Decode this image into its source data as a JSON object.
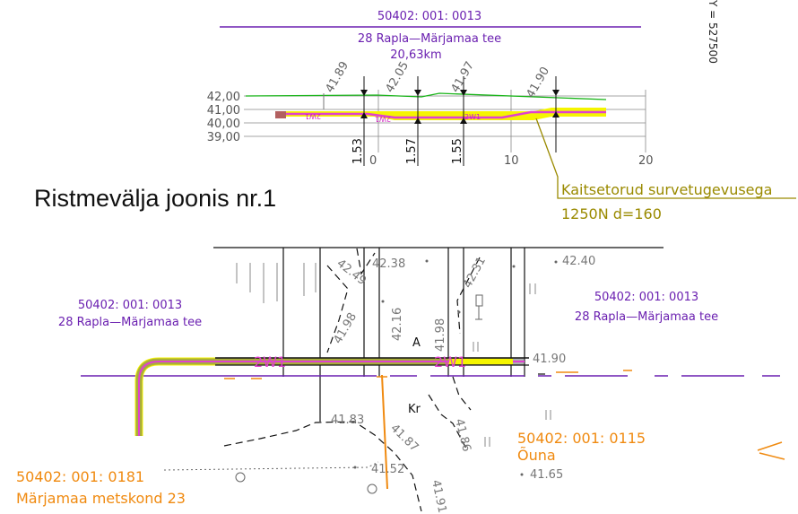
{
  "section_title": {
    "code": "50402: 001: 0013",
    "road": "28 Rapla—Märjamaa tee",
    "km": "20,63km"
  },
  "coordinate_label": "Y = 527500",
  "profile": {
    "y_ticks": [
      "42,00",
      "41,00",
      "40,00",
      "39,00"
    ],
    "x_ticks": [
      "0",
      "10",
      "20"
    ],
    "elevations": [
      "41.89",
      "42.05",
      "41.97",
      "41.90"
    ],
    "depths": [
      "1.53",
      "1.57",
      "1.55"
    ],
    "lane_marks": [
      "2W1",
      "2W1",
      "2W1"
    ]
  },
  "pipe_note": {
    "line1": "Kaitsetorud survetugevusega",
    "line2": "1250N d=160"
  },
  "drawing_title": "Ristmevälja joonis nr.1",
  "plan": {
    "parcel_left": {
      "code": "50402: 001: 0013",
      "road": "28 Rapla—Märjamaa tee"
    },
    "parcel_right": {
      "code": "50402: 001: 0013",
      "road": "28 Rapla—Märjamaa tee"
    },
    "parcel_bottom_right": {
      "code": "50402: 001: 0115",
      "name": "Õuna"
    },
    "parcel_bottom_left": {
      "code": "50402: 001: 0181",
      "name": "Märjamaa metskond 23"
    },
    "lane_marks": [
      "2W1",
      "2W1"
    ],
    "point_labels": [
      "A",
      "Kr"
    ],
    "elevations": [
      "42.49",
      "42.38",
      "42.31",
      "42.40",
      "41.98",
      "42.16",
      "41.98",
      "41.90",
      "41.83",
      "41.87",
      "41.86",
      "41.52",
      "41.65",
      "41.91"
    ]
  },
  "colors": {
    "road_purple": "#6a1fb0",
    "pipe_yellow": "#f5f500",
    "pipe_magenta": "#e040d0",
    "ground_green": "#18b418",
    "parcel_orange": "#f08a10",
    "note_olive": "#9a8a00"
  }
}
